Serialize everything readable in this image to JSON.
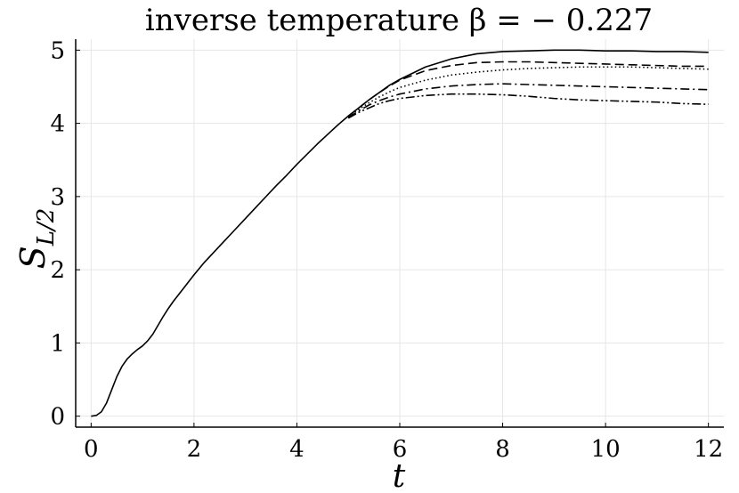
{
  "chart_data": {
    "type": "line",
    "title": "inverse temperature β = − 0.227",
    "xlabel": "t",
    "ylabel_main": "S",
    "ylabel_sub": "L/2",
    "xlim": [
      -0.3,
      12.3
    ],
    "ylim": [
      -0.15,
      5.15
    ],
    "xticks": [
      0,
      2,
      4,
      6,
      8,
      10,
      12
    ],
    "yticks": [
      0,
      1,
      2,
      3,
      4,
      5
    ],
    "grid": true,
    "legend": "none",
    "series": [
      {
        "style": "solid",
        "x": [
          0,
          0.1,
          0.2,
          0.3,
          0.4,
          0.5,
          0.6,
          0.7,
          0.8,
          0.9,
          1.0,
          1.1,
          1.2,
          1.3,
          1.4,
          1.5,
          1.6,
          1.7,
          1.8,
          1.9,
          2.0,
          2.2,
          2.4,
          2.6,
          2.8,
          3.0,
          3.2,
          3.4,
          3.6,
          3.8,
          4.0,
          4.2,
          4.4,
          4.6,
          4.8,
          5.0,
          5.2,
          5.4,
          5.6,
          5.8,
          6.0,
          6.5,
          7.0,
          7.5,
          8.0,
          8.5,
          9.0,
          9.5,
          10.0,
          10.5,
          11.0,
          11.5,
          12.0
        ],
        "y": [
          0,
          0.01,
          0.06,
          0.18,
          0.36,
          0.54,
          0.68,
          0.78,
          0.85,
          0.91,
          0.96,
          1.03,
          1.12,
          1.24,
          1.36,
          1.47,
          1.57,
          1.66,
          1.75,
          1.84,
          1.93,
          2.1,
          2.25,
          2.4,
          2.55,
          2.7,
          2.85,
          3.0,
          3.15,
          3.29,
          3.44,
          3.58,
          3.72,
          3.85,
          3.98,
          4.1,
          4.21,
          4.32,
          4.42,
          4.52,
          4.6,
          4.77,
          4.88,
          4.95,
          4.98,
          4.99,
          5.0,
          5.0,
          4.99,
          4.99,
          4.98,
          4.98,
          4.97
        ]
      },
      {
        "style": "dashed",
        "x": [
          5.0,
          5.2,
          5.4,
          5.6,
          5.8,
          6.0,
          6.5,
          7.0,
          7.5,
          8.0,
          8.5,
          9.0,
          9.5,
          10.0,
          10.5,
          11.0,
          11.5,
          12.0
        ],
        "y": [
          4.1,
          4.21,
          4.32,
          4.42,
          4.51,
          4.59,
          4.72,
          4.79,
          4.83,
          4.84,
          4.84,
          4.83,
          4.82,
          4.81,
          4.8,
          4.79,
          4.78,
          4.78
        ]
      },
      {
        "style": "dotted",
        "x": [
          5.0,
          5.2,
          5.4,
          5.6,
          5.8,
          6.0,
          6.5,
          7.0,
          7.5,
          8.0,
          8.5,
          9.0,
          9.5,
          10.0,
          10.5,
          11.0,
          11.5,
          12.0
        ],
        "y": [
          4.09,
          4.19,
          4.28,
          4.36,
          4.43,
          4.49,
          4.59,
          4.66,
          4.7,
          4.73,
          4.75,
          4.76,
          4.77,
          4.77,
          4.77,
          4.76,
          4.75,
          4.74
        ]
      },
      {
        "style": "dashdot",
        "x": [
          5.0,
          5.2,
          5.4,
          5.6,
          5.8,
          6.0,
          6.5,
          7.0,
          7.5,
          8.0,
          8.5,
          9.0,
          9.5,
          10.0,
          10.5,
          11.0,
          11.5,
          12.0
        ],
        "y": [
          4.08,
          4.17,
          4.25,
          4.31,
          4.36,
          4.4,
          4.47,
          4.51,
          4.53,
          4.54,
          4.53,
          4.52,
          4.51,
          4.5,
          4.49,
          4.48,
          4.47,
          4.46
        ]
      },
      {
        "style": "dashdotdot",
        "x": [
          5.0,
          5.2,
          5.4,
          5.6,
          5.8,
          6.0,
          6.5,
          7.0,
          7.5,
          8.0,
          8.5,
          9.0,
          9.5,
          10.0,
          10.5,
          11.0,
          11.5,
          12.0
        ],
        "y": [
          4.07,
          4.15,
          4.21,
          4.27,
          4.31,
          4.34,
          4.38,
          4.4,
          4.4,
          4.39,
          4.37,
          4.34,
          4.32,
          4.31,
          4.3,
          4.29,
          4.27,
          4.26
        ]
      }
    ]
  }
}
